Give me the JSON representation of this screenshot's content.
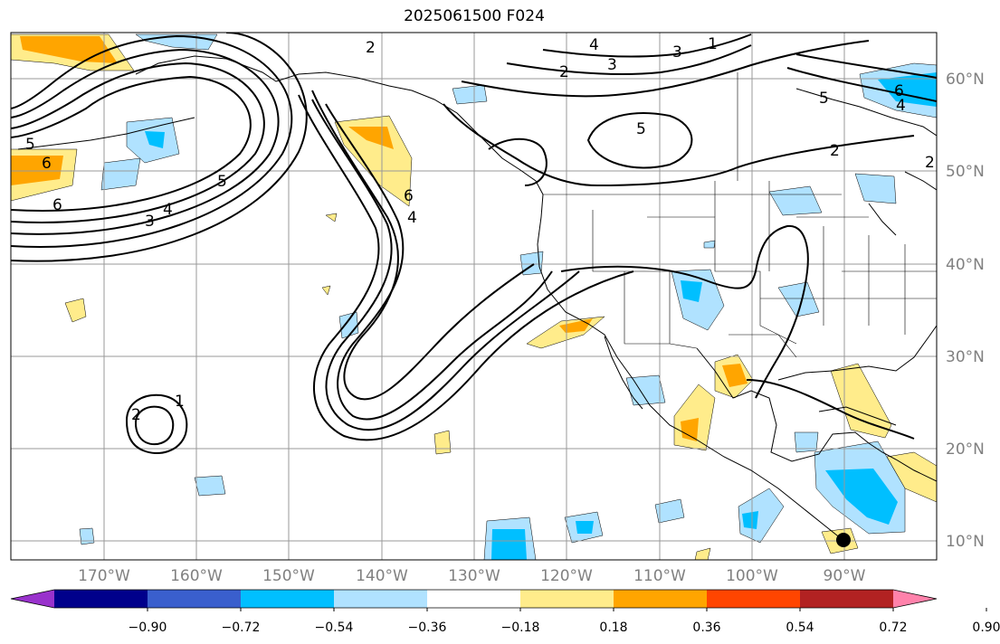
{
  "title": "2025061500 F024",
  "lat_labels": [
    "60°N",
    "50°N",
    "40°N",
    "30°N",
    "20°N",
    "10°N"
  ],
  "lon_labels": [
    "170°W",
    "160°W",
    "150°W",
    "140°W",
    "130°W",
    "120°W",
    "110°W",
    "100°W",
    "90°W"
  ],
  "colorbar": {
    "ticks": [
      "−0.90",
      "−0.72",
      "−0.54",
      "−0.36",
      "−0.18",
      "0.18",
      "0.36",
      "0.54",
      "0.72",
      "0.90"
    ],
    "colors": [
      "#9932cc",
      "#00008b",
      "#3a5fcd",
      "#00bfff",
      "#b0e2ff",
      "#ffffff",
      "#ffec8b",
      "#ffa500",
      "#ff4500",
      "#b22222",
      "#ff82ab"
    ]
  },
  "contour_labels": [
    "2",
    "4",
    "3",
    "1",
    "2",
    "3",
    "2",
    "5",
    "6",
    "4",
    "5",
    "2",
    "5",
    "6",
    "6",
    "4",
    "3",
    "5",
    "6",
    "4",
    "1",
    "2"
  ]
}
